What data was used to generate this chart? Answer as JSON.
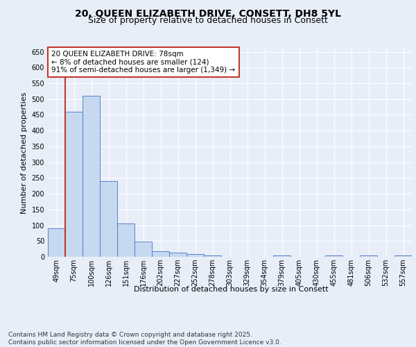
{
  "title_line1": "20, QUEEN ELIZABETH DRIVE, CONSETT, DH8 5YL",
  "title_line2": "Size of property relative to detached houses in Consett",
  "xlabel": "Distribution of detached houses by size in Consett",
  "ylabel": "Number of detached properties",
  "categories": [
    "49sqm",
    "75sqm",
    "100sqm",
    "126sqm",
    "151sqm",
    "176sqm",
    "202sqm",
    "227sqm",
    "252sqm",
    "278sqm",
    "303sqm",
    "329sqm",
    "354sqm",
    "379sqm",
    "405sqm",
    "430sqm",
    "455sqm",
    "481sqm",
    "506sqm",
    "532sqm",
    "557sqm"
  ],
  "values": [
    90,
    460,
    510,
    240,
    105,
    48,
    17,
    13,
    9,
    4,
    0,
    0,
    0,
    4,
    0,
    0,
    4,
    0,
    4,
    0,
    4
  ],
  "bar_color": "#c6d9f0",
  "bar_edge_color": "#4472c4",
  "vline_color": "#c0392b",
  "vline_x_index": 1,
  "annotation_text": "20 QUEEN ELIZABETH DRIVE: 78sqm\n← 8% of detached houses are smaller (124)\n91% of semi-detached houses are larger (1,349) →",
  "annotation_box_color": "#ffffff",
  "annotation_box_edge": "#c0392b",
  "ylim": [
    0,
    660
  ],
  "yticks": [
    0,
    50,
    100,
    150,
    200,
    250,
    300,
    350,
    400,
    450,
    500,
    550,
    600,
    650
  ],
  "footnote": "Contains HM Land Registry data © Crown copyright and database right 2025.\nContains public sector information licensed under the Open Government Licence v3.0.",
  "bg_color": "#e8eef8",
  "plot_bg_color": "#e8eef8",
  "grid_color": "#ffffff",
  "title_fontsize": 10,
  "subtitle_fontsize": 9,
  "label_fontsize": 8,
  "tick_fontsize": 7,
  "annotation_fontsize": 7.5,
  "footnote_fontsize": 6.5
}
